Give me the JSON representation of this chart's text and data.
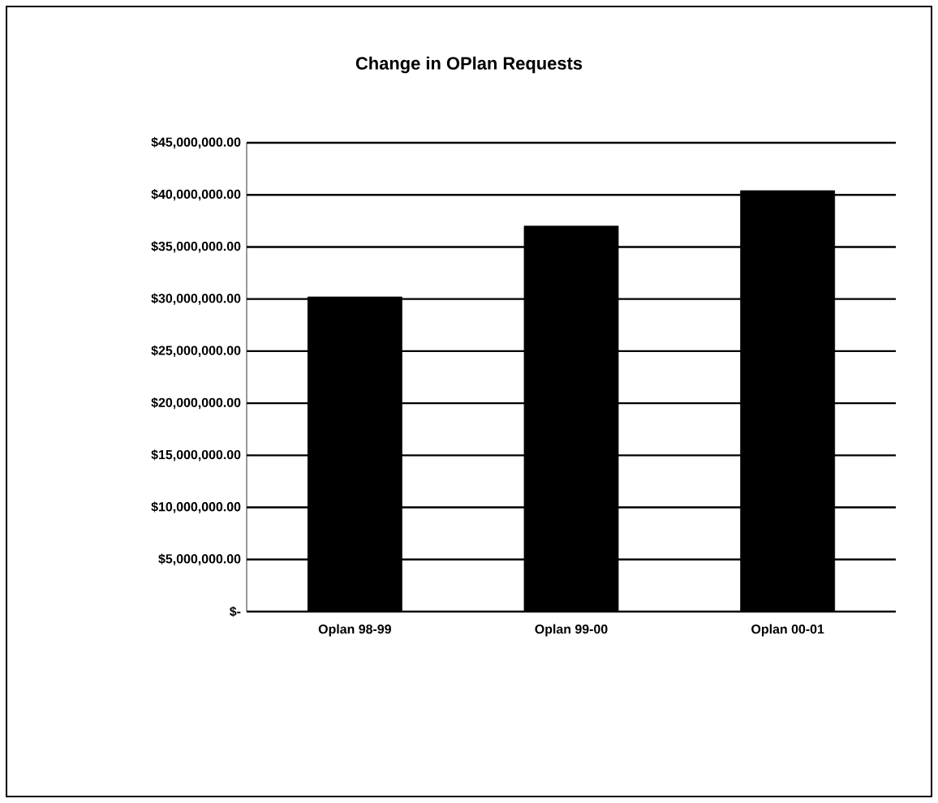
{
  "chart_data": {
    "type": "bar",
    "title": "Change in OPlan Requests",
    "categories": [
      "Oplan 98-99",
      "Oplan 99-00",
      "Oplan 00-01"
    ],
    "values": [
      30200000,
      37000000,
      40400000
    ],
    "color": "#000000",
    "ylim": [
      0,
      45000000
    ],
    "yticks": [
      {
        "value": 0,
        "label": "$-"
      },
      {
        "value": 5000000,
        "label": "$5,000,000.00"
      },
      {
        "value": 10000000,
        "label": "$10,000,000.00"
      },
      {
        "value": 15000000,
        "label": "$15,000,000.00"
      },
      {
        "value": 20000000,
        "label": "$20,000,000.00"
      },
      {
        "value": 25000000,
        "label": "$25,000,000.00"
      },
      {
        "value": 30000000,
        "label": "$30,000,000.00"
      },
      {
        "value": 35000000,
        "label": "$35,000,000.00"
      },
      {
        "value": 40000000,
        "label": "$40,000,000.00"
      },
      {
        "value": 45000000,
        "label": "$45,000,000.00"
      }
    ],
    "grid": "y"
  }
}
